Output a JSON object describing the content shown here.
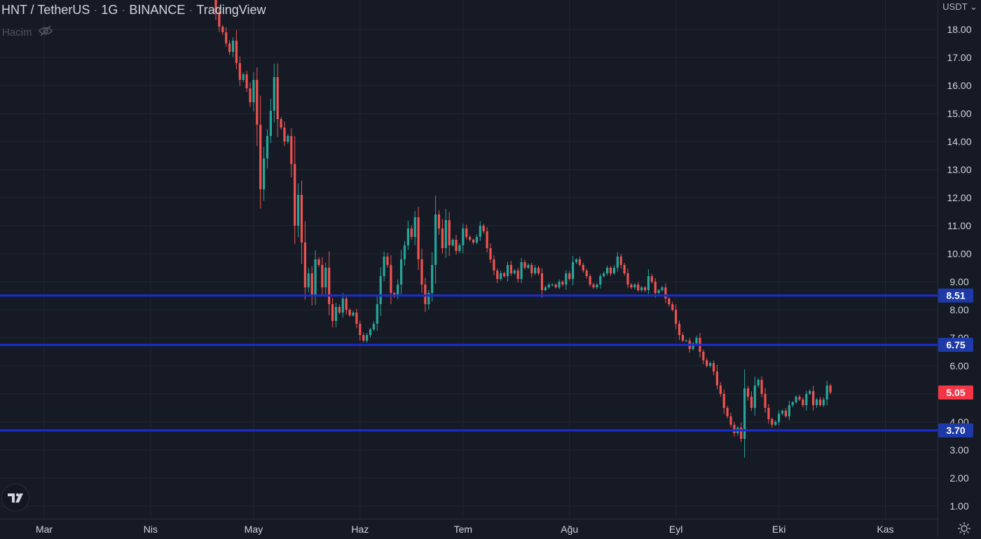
{
  "header": {
    "symbol": "HNT / TetherUS",
    "interval": "1G",
    "exchange": "BINANCE",
    "platform": "TradingView",
    "volume_label": "Hacim",
    "volume_icon": "eye-crossed-icon"
  },
  "price_axis": {
    "currency_label": "USDT"
  },
  "logo": {
    "text": "TV",
    "icon": "tradingview-logo"
  },
  "colors": {
    "background": "#161a25",
    "grid": "#232733",
    "up": "#26a69a",
    "down": "#ef5350",
    "level_line": "#1a2ed1",
    "level_badge": "#1d3aa8",
    "last_price_badge": "#f23645",
    "axis_text": "#d1d4dc"
  },
  "chart_data": {
    "type": "candlestick",
    "ylim": [
      0.6,
      19.0
    ],
    "y_ticks": [
      "1.00",
      "2.00",
      "3.00",
      "4.00",
      "5.00",
      "6.00",
      "7.00",
      "8.00",
      "9.00",
      "10.00",
      "11.00",
      "12.00",
      "13.00",
      "14.00",
      "15.00",
      "16.00",
      "17.00",
      "18.00"
    ],
    "x_ticks": [
      {
        "label": "Mar",
        "day": 0
      },
      {
        "label": "Nis",
        "day": 31
      },
      {
        "label": "May",
        "day": 61
      },
      {
        "label": "Haz",
        "day": 92
      },
      {
        "label": "Tem",
        "day": 122
      },
      {
        "label": "Ağu",
        "day": 153
      },
      {
        "label": "Eyl",
        "day": 184
      },
      {
        "label": "Eki",
        "day": 214
      },
      {
        "label": "Kas",
        "day": 245
      }
    ],
    "horizontal_levels": [
      {
        "value": 8.51,
        "label": "8.51"
      },
      {
        "value": 6.75,
        "label": "6.75"
      },
      {
        "value": 3.7,
        "label": "3.70"
      }
    ],
    "last_price": {
      "value": 5.05,
      "label": "5.05"
    },
    "candles_start_day": 49,
    "closes": [
      19.4,
      18.6,
      18.1,
      17.9,
      17.5,
      17.2,
      17.6,
      16.8,
      16.2,
      16.4,
      15.9,
      15.4,
      16.2,
      14.6,
      12.3,
      13.4,
      14.2,
      15.1,
      16.3,
      14.8,
      14.5,
      14.0,
      14.2,
      13.2,
      11.0,
      12.1,
      10.4,
      8.8,
      9.3,
      8.5,
      9.8,
      9.6,
      8.8,
      9.5,
      8.2,
      7.6,
      8.1,
      7.9,
      8.4,
      8.0,
      7.8,
      7.9,
      7.5,
      7.1,
      6.9,
      7.1,
      7.3,
      7.5,
      8.2,
      9.2,
      9.9,
      9.6,
      8.6,
      8.5,
      8.9,
      9.8,
      10.3,
      10.9,
      10.6,
      11.3,
      9.8,
      8.9,
      8.2,
      8.6,
      9.6,
      11.4,
      10.9,
      10.2,
      11.2,
      10.3,
      10.5,
      10.1,
      10.3,
      10.9,
      10.6,
      10.5,
      10.4,
      10.6,
      11.0,
      10.8,
      10.2,
      9.8,
      9.4,
      9.1,
      9.3,
      9.2,
      9.6,
      9.3,
      9.4,
      9.1,
      9.7,
      9.5,
      9.6,
      9.3,
      9.5,
      9.3,
      8.7,
      8.8,
      8.9,
      8.9,
      8.8,
      9.0,
      8.9,
      9.3,
      9.1,
      9.7,
      9.8,
      9.6,
      9.4,
      9.2,
      8.9,
      8.8,
      8.9,
      9.2,
      9.3,
      9.5,
      9.3,
      9.5,
      9.9,
      9.6,
      9.3,
      8.9,
      8.8,
      8.9,
      8.7,
      8.8,
      8.7,
      9.2,
      9.0,
      8.6,
      8.7,
      8.8,
      8.4,
      8.2,
      8.0,
      7.5,
      7.1,
      6.9,
      6.9,
      6.6,
      6.8,
      7.0,
      6.5,
      6.2,
      6.0,
      6.1,
      5.8,
      5.3,
      5.0,
      4.5,
      4.2,
      3.9,
      3.6,
      3.8,
      3.4,
      5.2,
      4.9,
      4.5,
      5.3,
      5.5,
      5.0,
      4.5,
      4.1,
      3.9,
      4.0,
      4.3,
      4.4,
      4.2,
      4.6,
      4.7,
      4.9,
      4.8,
      4.6,
      5.0,
      5.1,
      4.6,
      4.8,
      4.6,
      4.8,
      5.3,
      5.05
    ]
  }
}
